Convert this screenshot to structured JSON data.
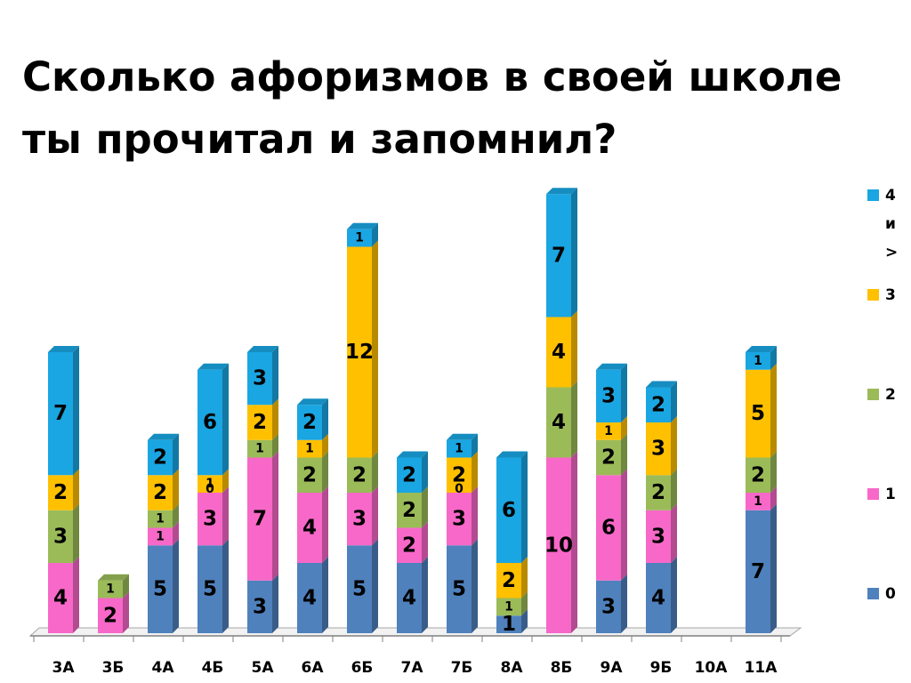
{
  "title": "Сколько афоризмов в своей школе ты прочитал и запомнил?",
  "chart_data": {
    "type": "bar",
    "stacked": true,
    "three_d": true,
    "title": "Сколько афоризмов в своей школе ты прочитал и запомнил?",
    "xlabel": "",
    "ylabel": "",
    "ylim": [
      0,
      25
    ],
    "grid": false,
    "legend_position": "right",
    "categories": [
      "3А",
      "3Б",
      "4А",
      "4Б",
      "5А",
      "6А",
      "6Б",
      "7А",
      "7Б",
      "8А",
      "8Б",
      "9А",
      "9Б",
      "10А",
      "11А"
    ],
    "series": [
      {
        "name": "0",
        "color": "#4F81BD",
        "values": [
          0,
          0,
          5,
          5,
          3,
          4,
          5,
          4,
          5,
          1,
          0,
          3,
          4,
          0,
          7
        ]
      },
      {
        "name": "1",
        "color": "#F768C8",
        "values": [
          4,
          2,
          1,
          3,
          7,
          4,
          3,
          2,
          3,
          0,
          10,
          6,
          3,
          0,
          1
        ]
      },
      {
        "name": "2",
        "color": "#9BBB59",
        "values": [
          3,
          1,
          1,
          0,
          1,
          2,
          2,
          2,
          0,
          1,
          4,
          2,
          2,
          0,
          2
        ]
      },
      {
        "name": "3",
        "color": "#FFC000",
        "values": [
          2,
          0,
          2,
          1,
          2,
          1,
          12,
          0,
          2,
          2,
          4,
          1,
          3,
          0,
          5
        ]
      },
      {
        "name": "4 и >",
        "color": "#1AA6E2",
        "values": [
          7,
          0,
          2,
          6,
          3,
          2,
          1,
          2,
          1,
          6,
          7,
          3,
          2,
          0,
          1
        ]
      }
    ],
    "value_labels": [
      [
        null,
        null,
        "5",
        "5",
        "3",
        "4",
        "5",
        "4",
        "5",
        "1",
        null,
        "3",
        "4",
        null,
        "7"
      ],
      [
        "4",
        "2",
        "1",
        "3",
        "7",
        "4",
        "3",
        "2",
        "3",
        null,
        "10",
        "6",
        "3",
        null,
        "1"
      ],
      [
        "3",
        "1",
        "1",
        "0",
        "1",
        "2",
        "2",
        "2",
        "0",
        "1",
        "4",
        "2",
        "2",
        null,
        "2"
      ],
      [
        "2",
        null,
        "2",
        "1",
        "2",
        "1",
        "12",
        null,
        "2",
        "2",
        "4",
        "1",
        "3",
        null,
        "5"
      ],
      [
        "7",
        null,
        "2",
        "6",
        "3",
        "2",
        "1",
        "2",
        "1",
        "6",
        "7",
        "3",
        "2",
        null,
        "1"
      ]
    ],
    "legend": [
      "4 и >",
      "3",
      "2",
      "1",
      "0"
    ]
  }
}
